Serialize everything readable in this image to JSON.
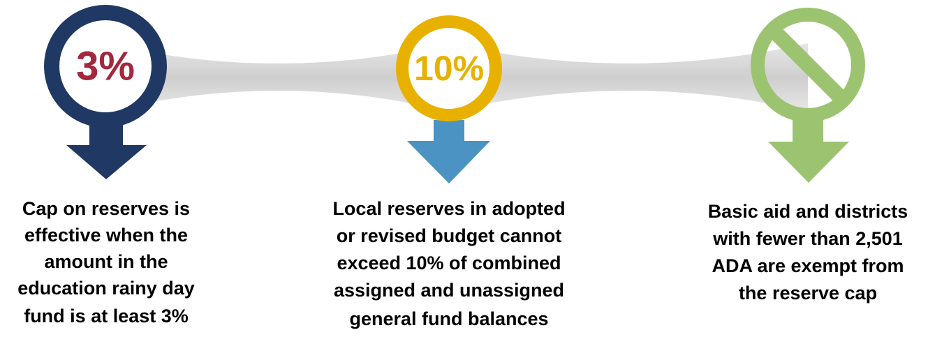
{
  "items": [
    {
      "badge": "3%",
      "description": [
        "Cap on reserves is",
        "effective when the",
        "amount in the",
        "education rainy day",
        "fund is at least 3%"
      ]
    },
    {
      "badge": "10%",
      "description": [
        "Local reserves in adopted",
        "or revised budget cannot",
        "exceed 10% of combined",
        "assigned and unassigned",
        "general fund balances"
      ]
    },
    {
      "description": [
        "Basic aid and districts",
        "with fewer than 2,501",
        "ADA are exempt from",
        "the reserve cap"
      ]
    }
  ]
}
